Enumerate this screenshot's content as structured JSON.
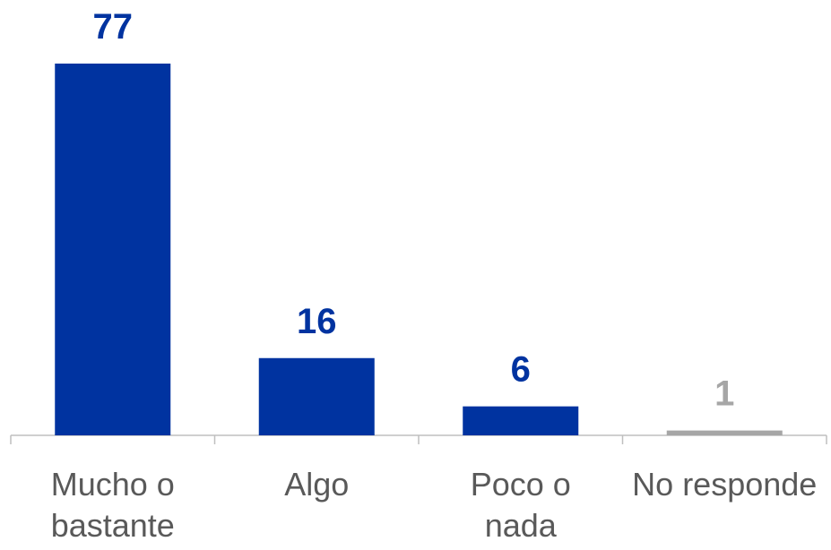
{
  "chart_data": {
    "type": "bar",
    "categories": [
      "Mucho o bastante",
      "Algo",
      "Poco o nada",
      "No responde"
    ],
    "values": [
      77,
      16,
      6,
      1
    ],
    "colors": [
      "#0033a0",
      "#0033a0",
      "#0033a0",
      "#a6a6a6"
    ]
  }
}
